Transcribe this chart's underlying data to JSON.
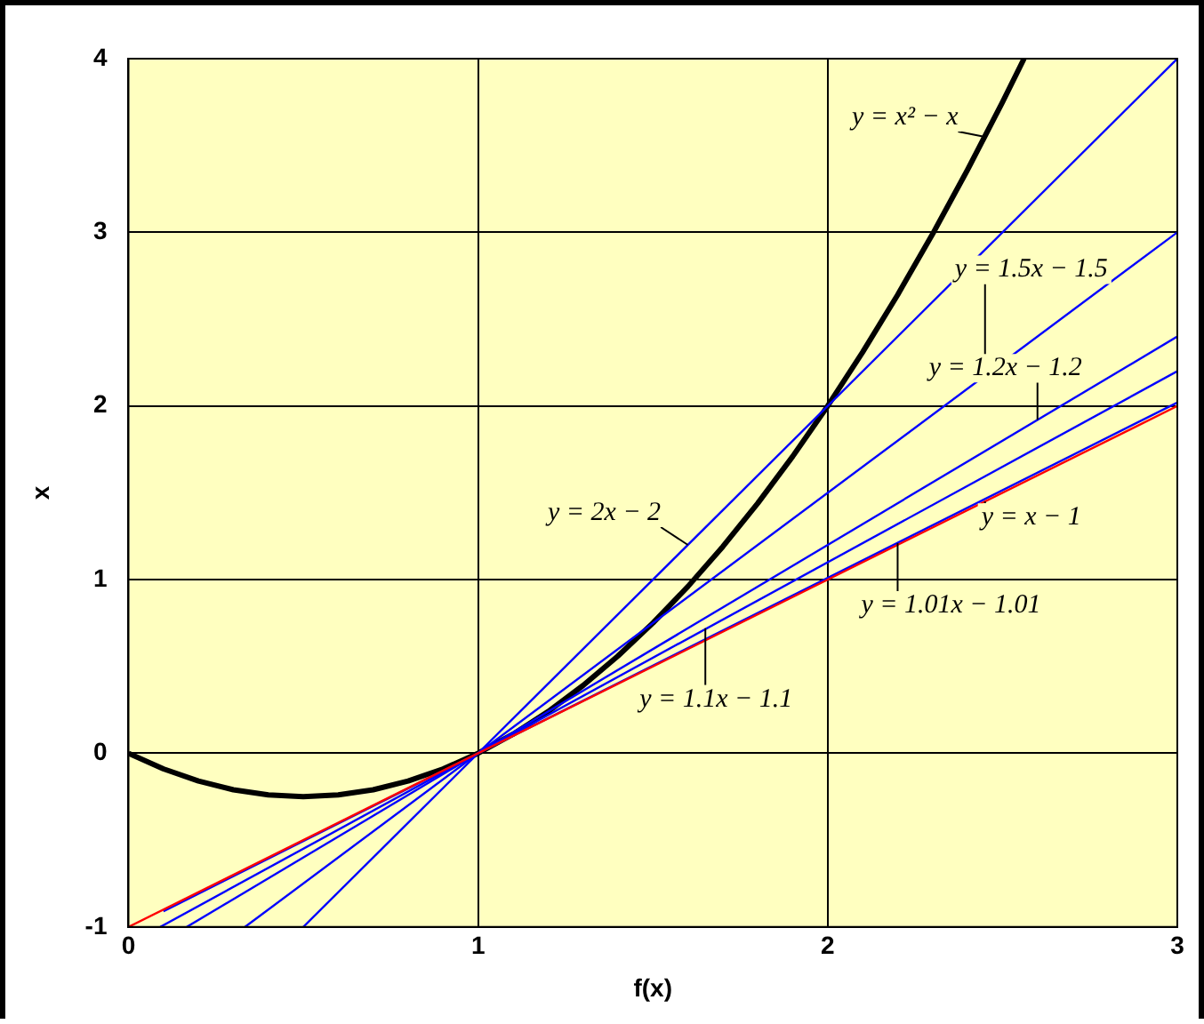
{
  "chart_data": {
    "type": "line",
    "xlabel": "f(x)",
    "ylabel": "x",
    "xlim": [
      0,
      3
    ],
    "ylim": [
      -1,
      4
    ],
    "xticks": [
      0,
      1,
      2,
      3
    ],
    "yticks": [
      -1,
      0,
      1,
      2,
      3,
      4
    ],
    "grid": true,
    "legend": false,
    "marker": "none",
    "line_style": "solid",
    "series": [
      {
        "color": "#ff0000",
        "x": [
          0,
          3
        ],
        "values": [
          -1,
          2
        ]
      },
      {
        "color": "#0000ff",
        "x": [
          0.1,
          3
        ],
        "values": [
          -0.91,
          2.02
        ]
      },
      {
        "color": "#0000ff",
        "x": [
          0.0909,
          3
        ],
        "values": [
          -1,
          2.2
        ]
      },
      {
        "color": "#0000ff",
        "x": [
          0.1667,
          3
        ],
        "values": [
          -1,
          2.4
        ]
      },
      {
        "color": "#0000ff",
        "x": [
          0.3333,
          3
        ],
        "values": [
          -1,
          3
        ]
      },
      {
        "color": "#0000ff",
        "x": [
          0.5,
          3
        ],
        "values": [
          -1,
          4
        ]
      },
      {
        "color": "#000000",
        "x": [
          0,
          0.1,
          0.2,
          0.3,
          0.4,
          0.5,
          0.6,
          0.7,
          0.8,
          0.9,
          1,
          1.1,
          1.2,
          1.3,
          1.4,
          1.5,
          1.6,
          1.7,
          1.8,
          1.9,
          2,
          2.1,
          2.2,
          2.3,
          2.4,
          2.5,
          2.5616
        ],
        "values": [
          0,
          -0.09,
          -0.16,
          -0.21,
          -0.24,
          -0.25,
          -0.24,
          -0.21,
          -0.16,
          -0.09,
          0,
          0.11,
          0.24,
          0.39,
          0.56,
          0.75,
          0.96,
          1.19,
          1.44,
          1.71,
          2,
          2.31,
          2.64,
          2.99,
          3.36,
          3.75,
          4
        ]
      }
    ],
    "annotations": [
      {
        "text": "y = x² − x",
        "x": 2.45,
        "y": 3.55
      },
      {
        "text": "y = 1.5x − 1.5",
        "x": 2.45,
        "y": 2.18
      },
      {
        "text": "y = 1.2x − 1.2",
        "x": 2.6,
        "y": 1.92
      },
      {
        "text": "y = 2x − 2",
        "x": 1.6,
        "y": 1.2
      },
      {
        "text": "y = x − 1",
        "x": 2.45,
        "y": 1.45
      },
      {
        "text": "y = 1.01x − 1.01",
        "x": 2.2,
        "y": 1.21
      },
      {
        "text": "y = 1.1x − 1.1",
        "x": 1.65,
        "y": 0.72
      }
    ]
  }
}
